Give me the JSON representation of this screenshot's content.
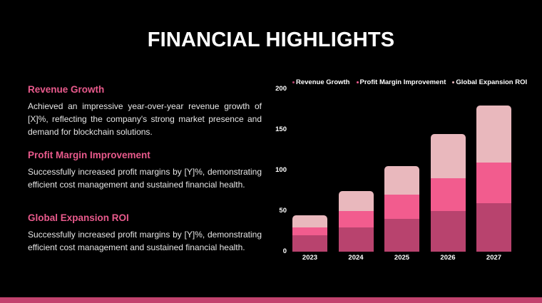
{
  "title": "FINANCIAL HIGHLIGHTS",
  "sections": [
    {
      "heading": "Revenue Growth",
      "body": "Achieved an impressive year-over-year revenue growth of [X]%, reflecting the company's strong market presence and demand for blockchain solutions."
    },
    {
      "heading": "Profit Margin Improvement",
      "body": "Successfully increased profit margins by [Y]%, demonstrating efficient cost management and sustained financial health."
    },
    {
      "heading": "Global Expansion ROI",
      "body": "Successfully increased profit margins by [Y]%, demonstrating efficient cost management and sustained financial health."
    }
  ],
  "colors": {
    "accent": "#e95a8c",
    "footer": "#c2426e",
    "series": [
      "#b8436e",
      "#f25c8e",
      "#e9b8bd"
    ]
  },
  "chart_data": {
    "type": "bar",
    "stacked": true,
    "title": "",
    "xlabel": "",
    "ylabel": "",
    "categories": [
      "2023",
      "2024",
      "2025",
      "2026",
      "2027"
    ],
    "series": [
      {
        "name": "Revenue Growth",
        "values": [
          20,
          30,
          40,
          50,
          60
        ]
      },
      {
        "name": "Profit Margin Improvement",
        "values": [
          10,
          20,
          30,
          40,
          50
        ]
      },
      {
        "name": "Global Expansion ROI",
        "values": [
          15,
          25,
          35,
          55,
          70
        ]
      }
    ],
    "yticks": [
      0,
      50,
      100,
      150,
      200
    ],
    "ylim": [
      0,
      200
    ],
    "grid": false,
    "legend_position": "top"
  }
}
